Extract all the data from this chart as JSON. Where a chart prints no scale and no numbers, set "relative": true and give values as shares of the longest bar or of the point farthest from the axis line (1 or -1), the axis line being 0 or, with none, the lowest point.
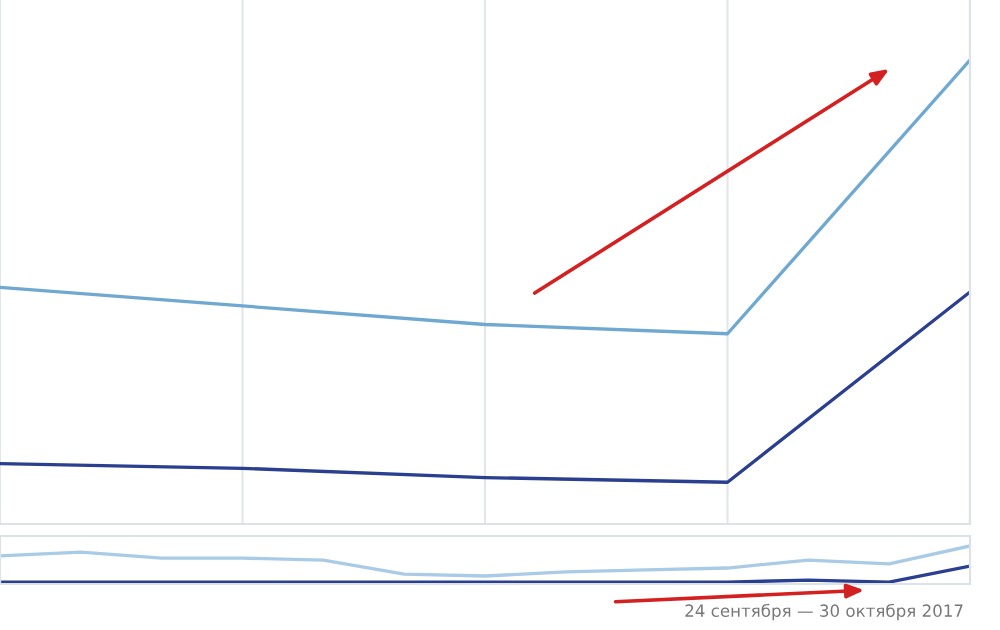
{
  "chart_data": [
    {
      "type": "line",
      "relative": true,
      "grid": "x",
      "categories": [
        null,
        null,
        null,
        null,
        null
      ],
      "series": [
        {
          "color": "#6fa8d0",
          "values": [
            0.51,
            0.47,
            0.43,
            0.41,
            1
          ]
        },
        {
          "color": "#2a3f8f",
          "values": [
            0.13,
            0.12,
            0.1,
            0.09,
            0.5
          ]
        }
      ]
    },
    {
      "type": "line",
      "relative": true,
      "categories": [
        null,
        null,
        null,
        null,
        null,
        null,
        null,
        null,
        null,
        null,
        null,
        null,
        null
      ],
      "series": [
        {
          "color": "#a9cbe6",
          "values": [
            0.74,
            0.84,
            0.68,
            0.68,
            0.63,
            0.26,
            0.21,
            0.32,
            0.37,
            0.42,
            0.63,
            0.53,
            1
          ]
        },
        {
          "color": "#2a3f8f",
          "values": [
            0.05,
            0.05,
            0.05,
            0.05,
            0.05,
            0.05,
            0.05,
            0.05,
            0.05,
            0.05,
            0.1,
            0.05,
            0.47
          ]
        }
      ],
      "annotations": [
        "24 сентября — 30 октября 2017"
      ]
    }
  ]
}
